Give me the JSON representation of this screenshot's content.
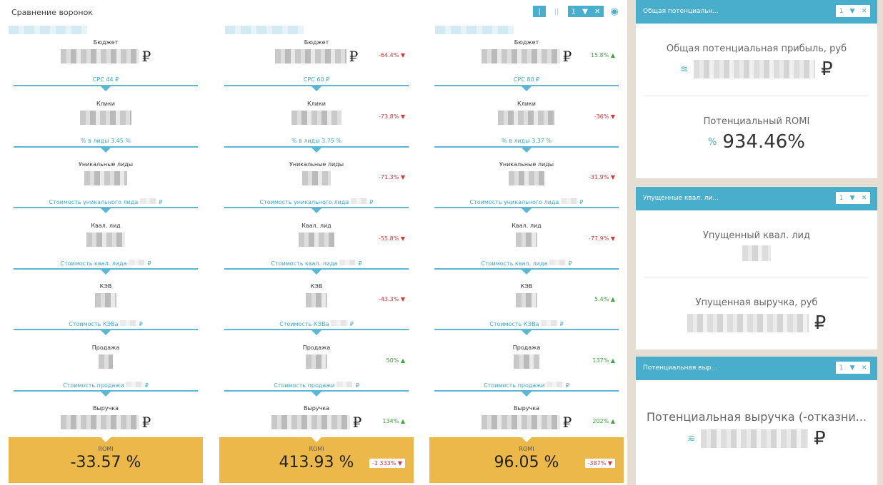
{
  "header": {
    "title": "Сравнение воронок",
    "view_single": "|",
    "view_double": "||",
    "filter_count": "1",
    "filter_icon": "funnel-icon",
    "close": "✕",
    "eye": "eye-icon"
  },
  "currency": "₽",
  "stages": [
    "Бюджет",
    "Клики",
    "Уникальные лиды",
    "Квал. лид",
    "КЭВ",
    "Продажа",
    "Выручка"
  ],
  "romi_label": "ROMI",
  "columns": [
    {
      "links": [
        "CPC 44 ₽",
        "% в лиды 3.45 %",
        "Стоимость уникального лида",
        "Стоимость квал. лида",
        "Стоимость КЭВа",
        "Стоимость продажи"
      ],
      "changes": [
        null,
        null,
        null,
        null,
        null,
        null,
        null
      ],
      "romi": "-33.57 %",
      "romi_change": null
    },
    {
      "links": [
        "CPC 60 ₽",
        "% в лиды 3.75 %",
        "Стоимость уникального лида",
        "Стоимость квал. лида",
        "Стоимость КЭВа",
        "Стоимость продажи"
      ],
      "changes": [
        {
          "t": "-64.4%",
          "d": "down"
        },
        {
          "t": "-73.8%",
          "d": "down"
        },
        {
          "t": "-71.3%",
          "d": "down"
        },
        {
          "t": "-55.8%",
          "d": "down"
        },
        {
          "t": "-43.3%",
          "d": "down"
        },
        {
          "t": "50%",
          "d": "up"
        },
        {
          "t": "134%",
          "d": "up"
        }
      ],
      "romi": "413.93 %",
      "romi_change": "-1 333%"
    },
    {
      "links": [
        "CPC 80 ₽",
        "% в лиды 3.37 %",
        "Стоимость уникального лида",
        "Стоимость квал. лида",
        "Стоимость КЭВа",
        "Стоимость продажи"
      ],
      "changes": [
        {
          "t": "15.8%",
          "d": "up"
        },
        {
          "t": "-36%",
          "d": "down"
        },
        {
          "t": "-31.9%",
          "d": "down"
        },
        {
          "t": "-77.9%",
          "d": "down"
        },
        {
          "t": "5.4%",
          "d": "up"
        },
        {
          "t": "137%",
          "d": "up"
        },
        {
          "t": "202%",
          "d": "up"
        }
      ],
      "romi": "96.05 %",
      "romi_change": "-387%"
    }
  ],
  "panels": [
    {
      "title": "Общая потенциальн...",
      "filter_count": "1",
      "metrics": [
        {
          "label": "Общая потенциальная прибыль, руб",
          "icon": "coins-icon",
          "value": null,
          "suffix": "₽"
        },
        {
          "label": "Потенциальный ROMI",
          "icon": "percent-icon",
          "value": "934.46%"
        }
      ]
    },
    {
      "title": "Упущенные квал. ли...",
      "filter_count": "1",
      "metrics": [
        {
          "label": "Упущенный квал. лид",
          "value": null
        },
        {
          "label": "Упущенная выручка, руб",
          "value": null,
          "suffix": "₽"
        }
      ]
    },
    {
      "title": "Потенциальная выр...",
      "filter_count": "1",
      "metrics": [
        {
          "label": "Потенциальная выручка (-отказни...",
          "icon": "coins-icon",
          "value": null,
          "suffix": "₽"
        }
      ]
    }
  ]
}
